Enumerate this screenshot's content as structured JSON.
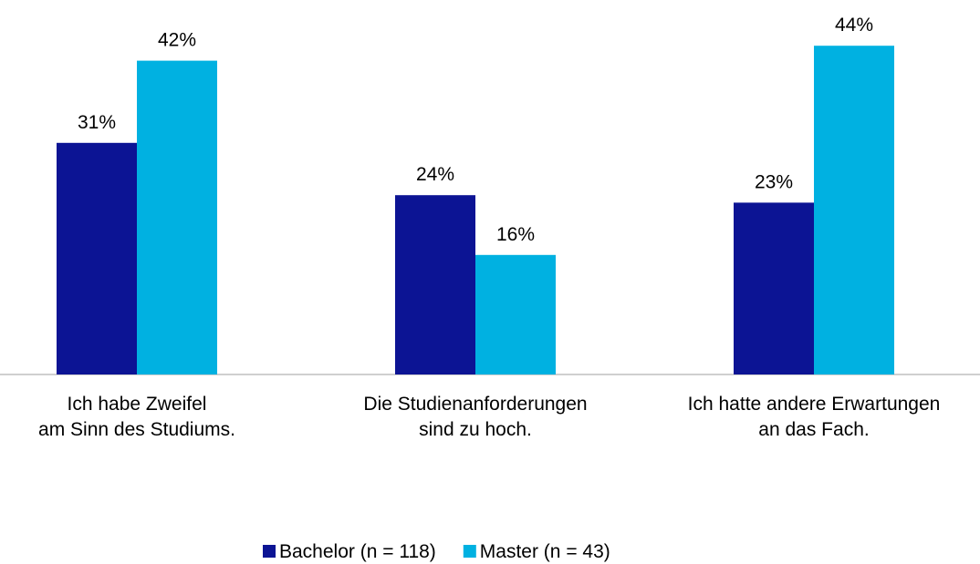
{
  "chart_data": {
    "type": "bar",
    "categories": [
      [
        "Ich habe Zweifel",
        "am Sinn des Studiums."
      ],
      [
        "Die Studienanforderungen",
        "sind zu hoch."
      ],
      [
        "Ich hatte andere Erwartungen",
        "an das Fach."
      ]
    ],
    "series": [
      {
        "name": "Bachelor (n = 118)",
        "color": "#0c1494",
        "values": [
          31,
          24,
          23
        ],
        "value_labels": [
          "31%",
          "24%",
          "23%"
        ]
      },
      {
        "name": "Master (n = 43)",
        "color": "#00b1e1",
        "values": [
          42,
          16,
          44
        ],
        "value_labels": [
          "42%",
          "16%",
          "44%"
        ]
      }
    ]
  }
}
